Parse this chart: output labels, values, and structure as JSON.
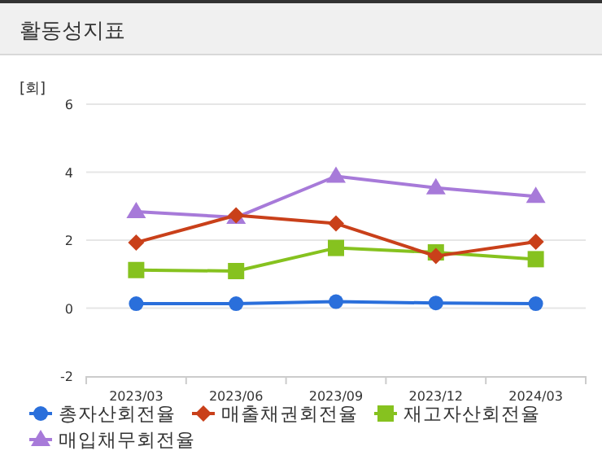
{
  "chart_data": {
    "type": "line",
    "title": "활동성지표",
    "ylabel": "[회]",
    "categories": [
      "2023/03",
      "2023/06",
      "2023/09",
      "2023/12",
      "2024/03"
    ],
    "series": [
      {
        "name": "총자산회전율",
        "color": "#2a6fdb",
        "marker": "circle",
        "values": [
          0.13,
          0.13,
          0.19,
          0.15,
          0.13
        ]
      },
      {
        "name": "매출채권회전율",
        "color": "#c9401a",
        "marker": "diamond",
        "values": [
          1.93,
          2.73,
          2.49,
          1.53,
          1.95
        ]
      },
      {
        "name": "재고자산회전율",
        "color": "#86c21f",
        "marker": "square",
        "values": [
          1.12,
          1.09,
          1.77,
          1.64,
          1.44
        ]
      },
      {
        "name": "매입채무회전율",
        "color": "#a77ad9",
        "marker": "triangle",
        "values": [
          2.84,
          2.67,
          3.88,
          3.54,
          3.29
        ]
      }
    ],
    "ylim": [
      -2,
      6
    ],
    "yticks": [
      -2,
      0,
      2,
      4,
      6
    ],
    "grid": "y",
    "legend": "bottom",
    "line_style": "solid"
  }
}
